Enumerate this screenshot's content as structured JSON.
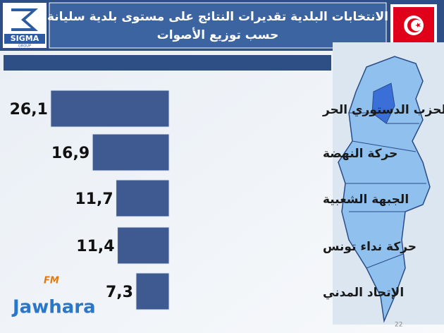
{
  "logo": {
    "name": "SIGMA",
    "sub": "GROUP"
  },
  "watermark": {
    "fm": "FM",
    "brand": "Jawhara"
  },
  "page_number": "22",
  "chart_data": {
    "type": "bar",
    "orientation": "horizontal",
    "title": "الانتخابات البلدية تقديرات النتائج على مستوى بلدية سليانة",
    "subtitle": "حسب توزيع الأصوات",
    "categories": [
      "الحزب الدستوري الحر",
      "حركة النهضة",
      "الجبهة الشعبية",
      "حركة نداء تونس",
      "الإتحاد المدني"
    ],
    "values": [
      26.1,
      16.9,
      11.7,
      11.4,
      7.3
    ],
    "value_labels": [
      "26,1",
      "16,9",
      "11,7",
      "11,4",
      "7,3"
    ],
    "color": "#3e5a91"
  }
}
